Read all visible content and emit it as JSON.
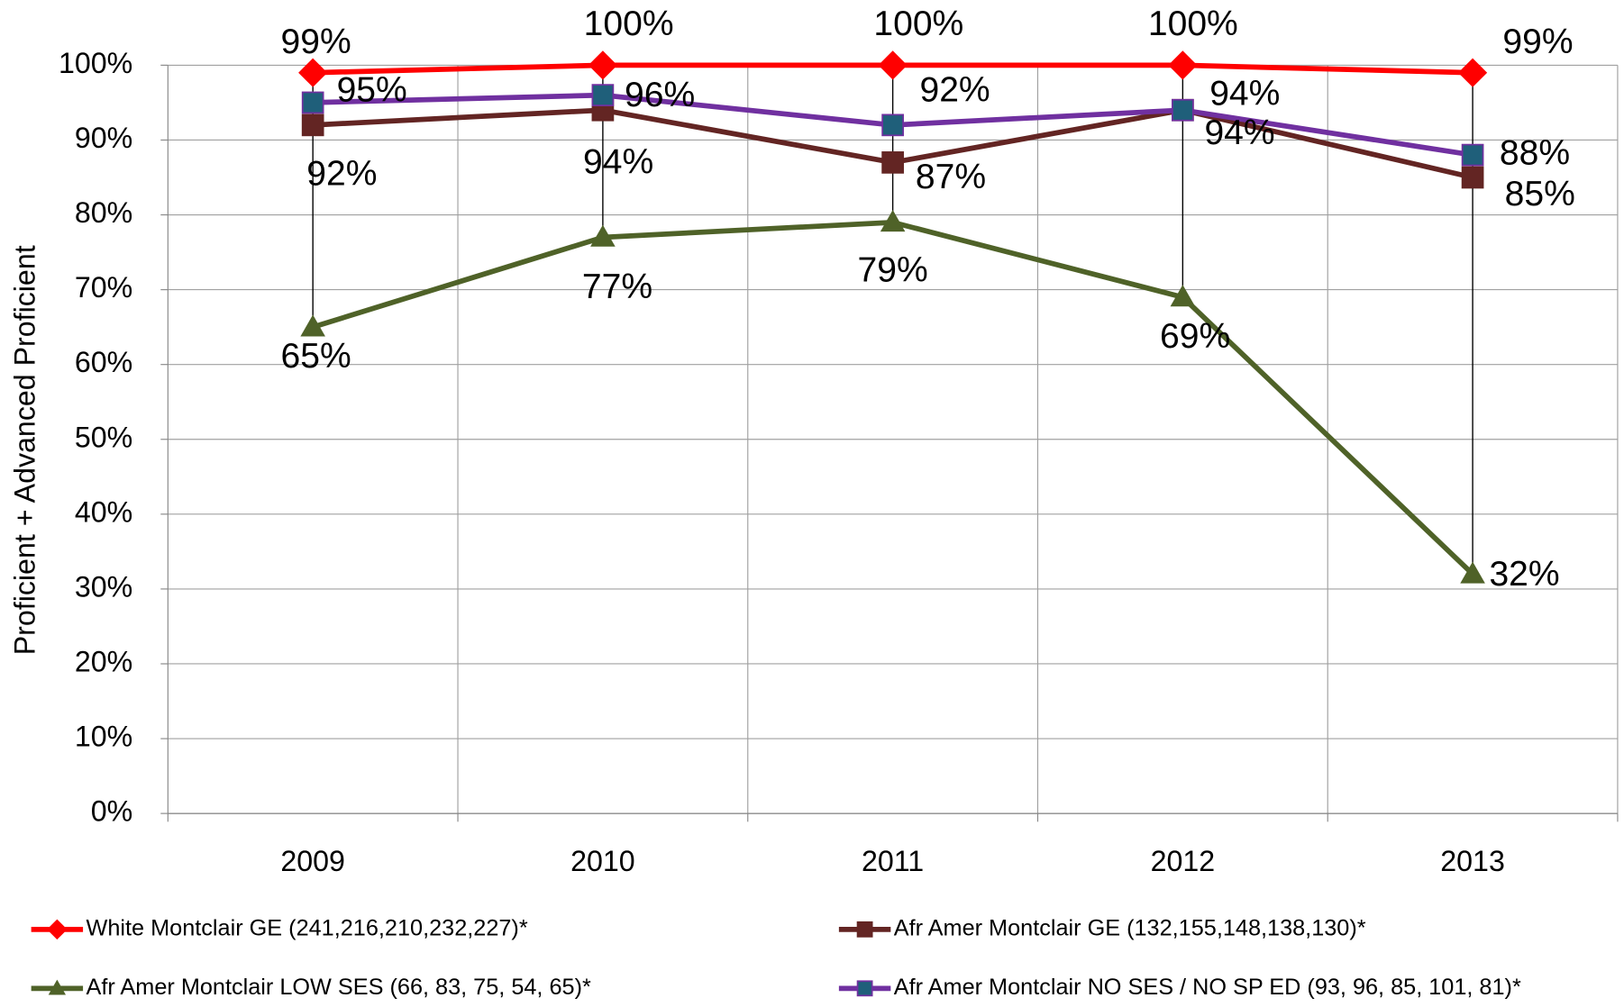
{
  "chart_data": {
    "type": "line",
    "y_label": "Proficient + Advanced Proficient",
    "categories": [
      "2009",
      "2010",
      "2011",
      "2012",
      "2013"
    ],
    "ylim": [
      0,
      100
    ],
    "yticks": [
      {
        "value": 0,
        "label": "0%"
      },
      {
        "value": 10,
        "label": "10%"
      },
      {
        "value": 20,
        "label": "20%"
      },
      {
        "value": 30,
        "label": "30%"
      },
      {
        "value": 40,
        "label": "40%"
      },
      {
        "value": 50,
        "label": "50%"
      },
      {
        "value": 60,
        "label": "60%"
      },
      {
        "value": 70,
        "label": "70%"
      },
      {
        "value": 80,
        "label": "80%"
      },
      {
        "value": 90,
        "label": "90%"
      },
      {
        "value": 100,
        "label": "100%"
      }
    ],
    "grid": true,
    "series": [
      {
        "name": "White Montclair GE (241,216,210,232,227)*",
        "color": "#ff0000",
        "marker": "diamond",
        "values": [
          99,
          100,
          100,
          100,
          99
        ],
        "value_labels": [
          "99%",
          "100%",
          "100%",
          "100%",
          "99%"
        ]
      },
      {
        "name": "Afr Amer Montclair GE (132,155,148,138,130)*",
        "color": "#632523",
        "marker": "square",
        "values": [
          92,
          94,
          87,
          94,
          85
        ],
        "value_labels": [
          "92%",
          "94%",
          "87%",
          "94%",
          "85%"
        ]
      },
      {
        "name": "Afr Amer Montclair LOW SES (66, 83, 75, 54, 65)*",
        "color": "#4f6228",
        "marker": "triangle",
        "values": [
          65,
          77,
          79,
          69,
          32
        ],
        "value_labels": [
          "65%",
          "77%",
          "79%",
          "69%",
          "32%"
        ]
      },
      {
        "name": "Afr Amer Montclair NO SES / NO SP ED  (93, 96, 85, 101, 81)*",
        "color": "#7030a0",
        "marker_color": "#1f5f7a",
        "marker": "square",
        "values": [
          95,
          96,
          92,
          94,
          88
        ],
        "value_labels": [
          "95%",
          "96%",
          "92%",
          "94%",
          "88%"
        ]
      }
    ]
  }
}
